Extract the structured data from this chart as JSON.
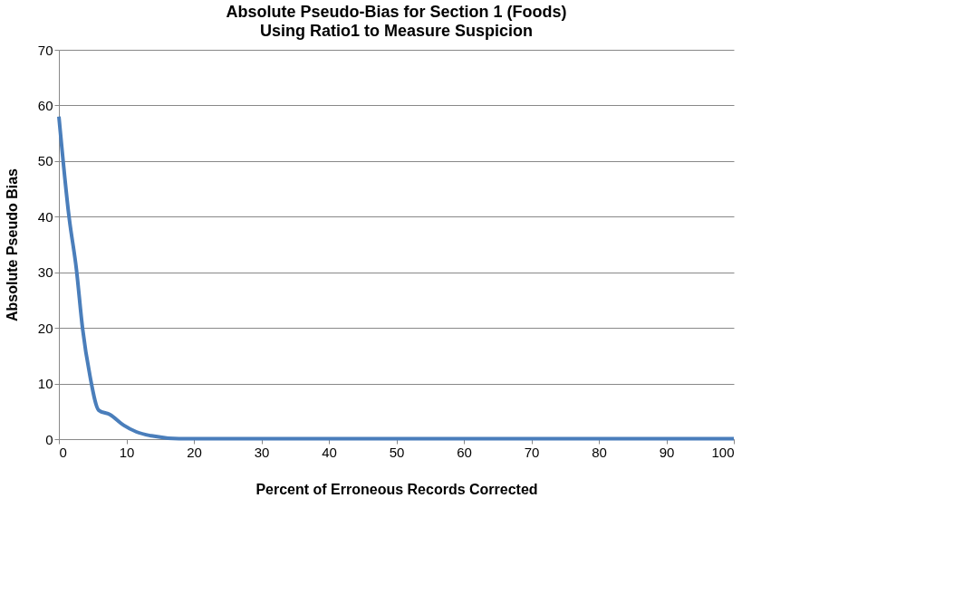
{
  "chart_data": {
    "type": "line",
    "title": "Absolute Pseudo-Bias  for  Section 1 (Foods)",
    "subtitle": "Using Ratio1  to Measure Suspicion",
    "xlabel": "Percent  of Erroneous Records Corrected",
    "ylabel": "Absolute Pseudo Bias",
    "x": [
      0,
      1.5,
      2.6,
      3.5,
      4.6,
      5.9,
      7.6,
      9.6,
      11.5,
      13.7,
      17.8,
      20,
      30,
      40,
      50,
      60,
      70,
      80,
      90,
      100
    ],
    "series": [
      {
        "color": "#4a7ebb",
        "values": [
          58,
          40,
          30.5,
          20,
          11.4,
          5.2,
          4.4,
          2.5,
          1.3,
          0.6,
          0.1,
          0.1,
          0.1,
          0.1,
          0.1,
          0.1,
          0.1,
          0.1,
          0.1,
          0.1
        ]
      }
    ],
    "xlim": [
      0,
      100
    ],
    "xticks": [
      0,
      10,
      20,
      30,
      40,
      50,
      60,
      70,
      80,
      90,
      100
    ],
    "ylim": [
      0,
      70
    ],
    "yticks": [
      0,
      10,
      20,
      30,
      40,
      50,
      60,
      70
    ],
    "grid": "y",
    "marker": "none",
    "line_style": "solid",
    "legend": false
  }
}
